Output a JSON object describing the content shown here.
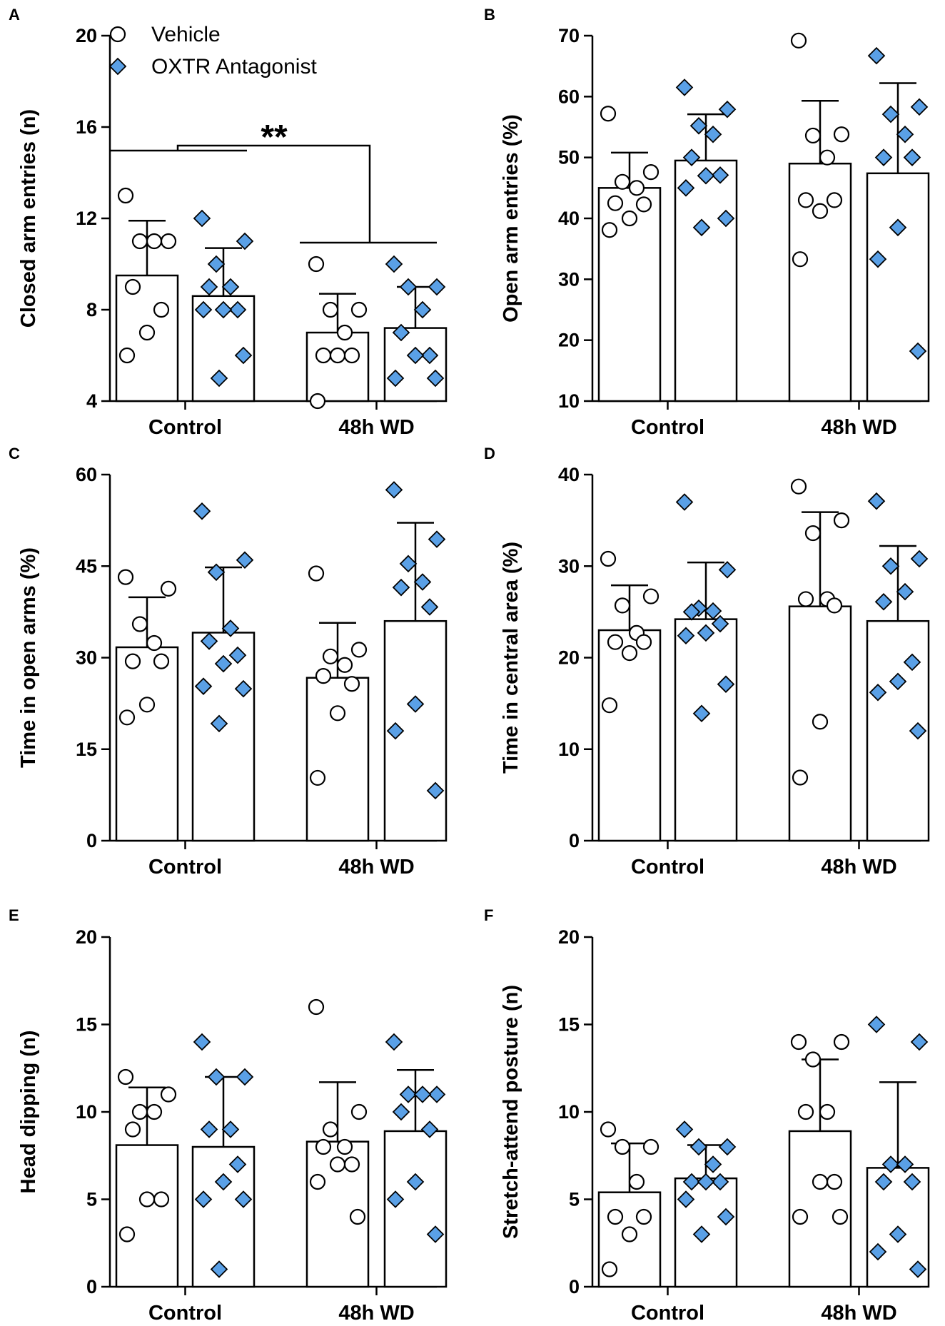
{
  "legend": {
    "vehicle_label": "Vehicle",
    "antagonist_label": "OXTR Antagonist"
  },
  "colors": {
    "antagonist_fill": "#5aa0e6",
    "vehicle_fill": "#ffffff",
    "stroke": "#000000"
  },
  "significance": {
    "label": "**"
  },
  "chart_data": [
    {
      "panel": "A",
      "type": "bar",
      "ylabel": "Closed arm entries (n)",
      "ylim": [
        4,
        20
      ],
      "yticks": [
        4,
        8,
        12,
        16,
        20
      ],
      "categories": [
        "Control",
        "48h WD"
      ],
      "series": [
        {
          "name": "Vehicle",
          "means": [
            9.5,
            7.0
          ],
          "sd_upper": [
            11.9,
            8.7
          ],
          "points": [
            [
              13,
              11,
              11,
              11,
              9,
              8,
              7,
              6
            ],
            [
              10,
              8,
              8,
              7,
              6,
              6,
              6,
              4
            ]
          ]
        },
        {
          "name": "OXTR Antagonist",
          "means": [
            8.6,
            7.2
          ],
          "sd_upper": [
            10.7,
            9.0
          ],
          "points": [
            [
              12,
              11,
              10,
              9,
              9,
              8,
              8,
              8,
              6,
              5
            ],
            [
              10,
              9,
              9,
              8,
              7,
              6,
              6,
              5,
              5
            ]
          ]
        }
      ]
    },
    {
      "panel": "B",
      "type": "bar",
      "ylabel": "Open arm entries (%)",
      "ylim": [
        10,
        70
      ],
      "yticks": [
        10,
        20,
        30,
        40,
        50,
        60,
        70
      ],
      "categories": [
        "Control",
        "48h WD"
      ],
      "series": [
        {
          "name": "Vehicle",
          "means": [
            45,
            49
          ],
          "sd_upper": [
            50.8,
            59.3
          ],
          "points": [
            [
              57.2,
              47.6,
              46,
              45,
              42.5,
              42.3,
              40,
              38.1
            ],
            [
              69.2,
              53.8,
              53.6,
              50,
              43,
              43,
              41.2,
              33.3
            ]
          ]
        },
        {
          "name": "OXTR Antagonist",
          "means": [
            49.5,
            47.4
          ],
          "sd_upper": [
            57.1,
            62.2
          ],
          "points": [
            [
              61.5,
              57.9,
              55.2,
              53.8,
              50,
              47.1,
              47,
              45,
              40,
              38.5
            ],
            [
              66.7,
              58.3,
              57.1,
              53.8,
              50,
              50,
              38.5,
              33.3,
              18.2
            ]
          ]
        }
      ]
    },
    {
      "panel": "C",
      "type": "bar",
      "ylabel": "Time in open arms (%)",
      "ylim": [
        0,
        60
      ],
      "yticks": [
        0,
        15,
        30,
        45,
        60
      ],
      "categories": [
        "Control",
        "48h WD"
      ],
      "series": [
        {
          "name": "Vehicle",
          "means": [
            31.7,
            26.7
          ],
          "sd_upper": [
            39.9,
            35.7
          ],
          "points": [
            [
              43.2,
              41.3,
              35.5,
              32.4,
              29.4,
              29.4,
              22.3,
              20.2
            ],
            [
              43.8,
              31.3,
              30.2,
              28.8,
              27,
              25.7,
              20.9,
              10.3
            ]
          ]
        },
        {
          "name": "OXTR Antagonist",
          "means": [
            34.1,
            36
          ],
          "sd_upper": [
            44.8,
            52.1
          ],
          "points": [
            [
              54,
              46,
              44,
              34.8,
              32.7,
              30.4,
              29,
              25.3,
              24.9,
              19.2
            ],
            [
              57.5,
              49.4,
              45.4,
              42.4,
              41.5,
              38.3,
              22.4,
              18,
              8.2
            ]
          ]
        }
      ]
    },
    {
      "panel": "D",
      "type": "bar",
      "ylabel": "Time in central area (%)",
      "ylim": [
        0,
        40
      ],
      "yticks": [
        0,
        10,
        20,
        30,
        40
      ],
      "categories": [
        "Control",
        "48h WD"
      ],
      "series": [
        {
          "name": "Vehicle",
          "means": [
            23,
            25.6
          ],
          "sd_upper": [
            27.9,
            35.9
          ],
          "points": [
            [
              30.8,
              26.7,
              25.7,
              22.7,
              21.7,
              21.7,
              20.5,
              14.8
            ],
            [
              38.7,
              35,
              33.6,
              26.4,
              26.4,
              25.7,
              13,
              6.9
            ]
          ]
        },
        {
          "name": "OXTR Antagonist",
          "means": [
            24.2,
            24
          ],
          "sd_upper": [
            30.4,
            32.2
          ],
          "points": [
            [
              37,
              29.6,
              25.4,
              25.1,
              25,
              23.7,
              22.7,
              22.4,
              17.1,
              13.9
            ],
            [
              37.1,
              30.8,
              30,
              27.2,
              26.1,
              19.5,
              17.4,
              16.2,
              12
            ]
          ]
        }
      ]
    },
    {
      "panel": "E",
      "type": "bar",
      "ylabel": "Head dipping (n)",
      "ylim": [
        0,
        20
      ],
      "yticks": [
        0,
        5,
        10,
        15,
        20
      ],
      "categories": [
        "Control",
        "48h WD"
      ],
      "series": [
        {
          "name": "Vehicle",
          "means": [
            8.1,
            8.3
          ],
          "sd_upper": [
            11.4,
            11.7
          ],
          "points": [
            [
              12,
              11,
              10,
              10,
              9,
              5,
              5,
              3
            ],
            [
              16,
              10,
              9,
              8,
              8,
              7,
              7,
              6,
              4
            ]
          ]
        },
        {
          "name": "OXTR Antagonist",
          "means": [
            8,
            8.9
          ],
          "sd_upper": [
            12,
            12.4
          ],
          "points": [
            [
              14,
              12,
              12,
              9,
              9,
              7,
              6,
              5,
              5,
              1
            ],
            [
              14,
              11,
              11,
              11,
              10,
              9,
              6,
              5,
              3
            ]
          ]
        }
      ]
    },
    {
      "panel": "F",
      "type": "bar",
      "ylabel": "Stretch-attend posture (n)",
      "ylim": [
        0,
        20
      ],
      "yticks": [
        0,
        5,
        10,
        15,
        20
      ],
      "categories": [
        "Control",
        "48h WD"
      ],
      "series": [
        {
          "name": "Vehicle",
          "means": [
            5.4,
            8.9
          ],
          "sd_upper": [
            8.2,
            13
          ],
          "points": [
            [
              9,
              8,
              8,
              6,
              4,
              4,
              3,
              1
            ],
            [
              14,
              14,
              13,
              10,
              10,
              6,
              6,
              4,
              4
            ]
          ]
        },
        {
          "name": "OXTR Antagonist",
          "means": [
            6.2,
            6.8
          ],
          "sd_upper": [
            8.1,
            11.7
          ],
          "points": [
            [
              9,
              8,
              8,
              7,
              6,
              6,
              6,
              5,
              4,
              3
            ],
            [
              15,
              14,
              7,
              7,
              6,
              6,
              3,
              2,
              1
            ]
          ]
        }
      ]
    }
  ]
}
